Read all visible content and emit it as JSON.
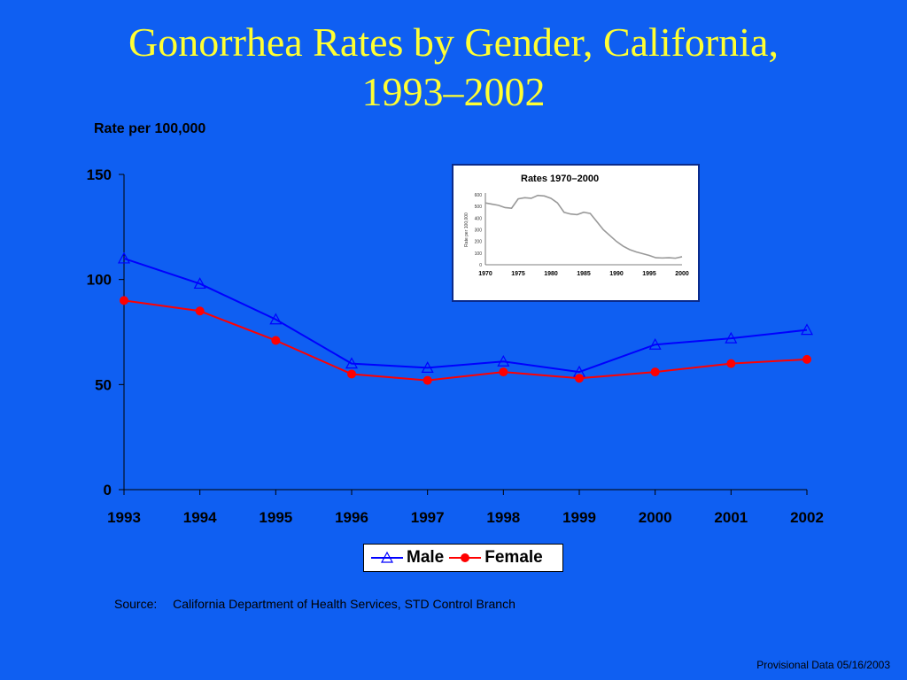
{
  "page": {
    "title_line1": "Gonorrhea Rates by Gender, California,",
    "title_line2": "1993–2002",
    "source_label": "Source:",
    "source_text": "California Department of Health Services, STD Control Branch",
    "footer": "Provisional Data 05/16/2003",
    "background_color": "#0f5ff2",
    "title_color": "#ffff33"
  },
  "chart_data": [
    {
      "type": "line",
      "title": "",
      "ylabel": "Rate per 100,000",
      "xlabel": "",
      "x": [
        "1993",
        "1994",
        "1995",
        "1996",
        "1997",
        "1998",
        "1999",
        "2000",
        "2001",
        "2002"
      ],
      "ylim": [
        0,
        150
      ],
      "yticks": [
        0,
        50,
        100,
        150
      ],
      "grid": false,
      "legend_position": "bottom",
      "series": [
        {
          "name": "Male",
          "color": "#0000ff",
          "marker": "triangle-open",
          "values": [
            110,
            98,
            81,
            60,
            58,
            61,
            56,
            69,
            72,
            76
          ]
        },
        {
          "name": "Female",
          "color": "#ff0000",
          "marker": "circle-filled",
          "values": [
            90,
            85,
            71,
            55,
            52,
            56,
            53,
            56,
            60,
            62
          ]
        }
      ]
    },
    {
      "type": "line",
      "title": "Rates 1970–2000",
      "ylabel": "Rate per 100,000",
      "xlabel": "",
      "xticks": [
        1970,
        1975,
        1980,
        1985,
        1990,
        1995,
        2000
      ],
      "yticks": [
        0,
        100,
        200,
        300,
        400,
        500,
        600
      ],
      "ylim": [
        0,
        600
      ],
      "xlim": [
        1970,
        2000
      ],
      "series": [
        {
          "name": "",
          "color": "#999999",
          "x": [
            1970,
            1971,
            1972,
            1973,
            1974,
            1975,
            1976,
            1977,
            1978,
            1979,
            1980,
            1981,
            1982,
            1983,
            1984,
            1985,
            1986,
            1987,
            1988,
            1989,
            1990,
            1991,
            1992,
            1993,
            1994,
            1995,
            1996,
            1997,
            1998,
            1999,
            2000
          ],
          "values": [
            530,
            520,
            510,
            490,
            485,
            565,
            575,
            570,
            595,
            590,
            570,
            530,
            450,
            435,
            430,
            450,
            440,
            370,
            300,
            250,
            200,
            160,
            130,
            110,
            95,
            80,
            60,
            58,
            60,
            56,
            69
          ]
        }
      ]
    }
  ]
}
